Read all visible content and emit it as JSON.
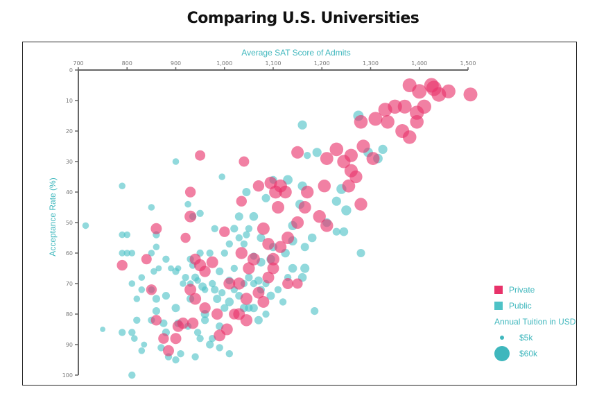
{
  "page": {
    "title": "Comparing U.S. Universities"
  },
  "colors": {
    "private": "#e8326a",
    "public": "#4ec2c6",
    "axis": "#666666",
    "accent_text": "#3fb7bd"
  },
  "legend": {
    "private_label": "Private",
    "public_label": "Public",
    "size_title": "Annual Tuition in USD",
    "size_small_label": "$5k",
    "size_large_label": "$60k"
  },
  "chart_data": {
    "type": "scatter",
    "title": "Comparing U.S. Universities",
    "xlabel": "Average SAT Score of Admits",
    "ylabel": "Acceptance Rate (%)",
    "xlim": [
      700,
      1500
    ],
    "ylim": [
      0,
      100
    ],
    "y_reversed": true,
    "x_axis_position": "top",
    "x_ticks": [
      700,
      800,
      900,
      1000,
      1100,
      1200,
      1300,
      1400,
      1500
    ],
    "x_tick_labels": [
      "700",
      "800",
      "900",
      "1,000",
      "1,100",
      "1,200",
      "1,300",
      "1,400",
      "1,500"
    ],
    "y_ticks": [
      0,
      10,
      20,
      30,
      40,
      50,
      60,
      70,
      80,
      90,
      100
    ],
    "y_tick_labels": [
      "0",
      "10",
      "20",
      "30",
      "40",
      "50",
      "60",
      "70",
      "80",
      "90",
      "100"
    ],
    "size_encoding": "annual tuition (USD)",
    "size_range": [
      5000,
      60000
    ],
    "grid": false,
    "legend_position": "bottom-right",
    "series": [
      {
        "name": "Private",
        "points": [
          [
            1430,
            6,
            60000
          ],
          [
            1425,
            5,
            55000
          ],
          [
            1410,
            12,
            52000
          ],
          [
            1380,
            5,
            50000
          ],
          [
            1400,
            7,
            55000
          ],
          [
            1440,
            8,
            55000
          ],
          [
            1460,
            7,
            50000
          ],
          [
            1505,
            8,
            50000
          ],
          [
            1395,
            14,
            52000
          ],
          [
            1370,
            12,
            50000
          ],
          [
            1350,
            12,
            52000
          ],
          [
            1335,
            17,
            48000
          ],
          [
            1330,
            13,
            50000
          ],
          [
            1310,
            16,
            50000
          ],
          [
            1280,
            17,
            48000
          ],
          [
            1365,
            20,
            50000
          ],
          [
            1380,
            22,
            48000
          ],
          [
            1395,
            17,
            48000
          ],
          [
            1285,
            25,
            46000
          ],
          [
            1305,
            29,
            44000
          ],
          [
            1260,
            28,
            46000
          ],
          [
            1230,
            26,
            48000
          ],
          [
            1245,
            30,
            46000
          ],
          [
            1260,
            33,
            46000
          ],
          [
            1270,
            35,
            42000
          ],
          [
            1255,
            38,
            44000
          ],
          [
            1280,
            44,
            42000
          ],
          [
            1210,
            29,
            44000
          ],
          [
            1170,
            40,
            42000
          ],
          [
            1205,
            38,
            42000
          ],
          [
            1150,
            27,
            40000
          ],
          [
            1115,
            38,
            44000
          ],
          [
            1125,
            40,
            42000
          ],
          [
            1095,
            37,
            40000
          ],
          [
            1105,
            40,
            44000
          ],
          [
            1165,
            45,
            40000
          ],
          [
            1195,
            48,
            42000
          ],
          [
            1210,
            51,
            42000
          ],
          [
            1150,
            50,
            40000
          ],
          [
            1110,
            45,
            40000
          ],
          [
            1080,
            52,
            40000
          ],
          [
            1130,
            55,
            40000
          ],
          [
            1115,
            58,
            38000
          ],
          [
            1090,
            57,
            38000
          ],
          [
            1100,
            62,
            40000
          ],
          [
            1060,
            62,
            40000
          ],
          [
            1035,
            60,
            38000
          ],
          [
            1050,
            65,
            38000
          ],
          [
            1090,
            68,
            36000
          ],
          [
            1100,
            65,
            36000
          ],
          [
            1030,
            70,
            38000
          ],
          [
            1045,
            75,
            38000
          ],
          [
            1070,
            73,
            36000
          ],
          [
            1080,
            76,
            36000
          ],
          [
            1010,
            70,
            36000
          ],
          [
            1030,
            80,
            36000
          ],
          [
            1045,
            82,
            38000
          ],
          [
            1005,
            85,
            36000
          ],
          [
            990,
            87,
            36000
          ],
          [
            985,
            80,
            34000
          ],
          [
            960,
            78,
            34000
          ],
          [
            950,
            64,
            38000
          ],
          [
            975,
            63,
            36000
          ],
          [
            960,
            66,
            34000
          ],
          [
            930,
            72,
            36000
          ],
          [
            940,
            75,
            36000
          ],
          [
            935,
            83,
            34000
          ],
          [
            905,
            84,
            34000
          ],
          [
            915,
            83,
            34000
          ],
          [
            900,
            88,
            32000
          ],
          [
            875,
            88,
            30000
          ],
          [
            885,
            92,
            32000
          ],
          [
            860,
            82,
            30000
          ],
          [
            850,
            72,
            30000
          ],
          [
            840,
            62,
            28000
          ],
          [
            790,
            64,
            30000
          ],
          [
            860,
            52,
            32000
          ],
          [
            930,
            48,
            36000
          ],
          [
            930,
            40,
            30000
          ],
          [
            950,
            28,
            28000
          ],
          [
            1040,
            30,
            28000
          ],
          [
            1035,
            43,
            30000
          ],
          [
            1070,
            38,
            34000
          ],
          [
            920,
            55,
            26000
          ],
          [
            1130,
            70,
            32000
          ],
          [
            1150,
            70,
            28000
          ],
          [
            1000,
            53,
            30000
          ],
          [
            1020,
            80,
            30000
          ],
          [
            940,
            62,
            32000
          ]
        ]
      },
      {
        "name": "Public",
        "points": [
          [
            1275,
            15,
            28000
          ],
          [
            1295,
            27,
            24000
          ],
          [
            1325,
            26,
            22000
          ],
          [
            1315,
            29,
            24000
          ],
          [
            1160,
            18,
            22000
          ],
          [
            1190,
            27,
            22000
          ],
          [
            1130,
            36,
            24000
          ],
          [
            1160,
            38,
            22000
          ],
          [
            1240,
            39,
            26000
          ],
          [
            1230,
            43,
            22000
          ],
          [
            1250,
            46,
            26000
          ],
          [
            1245,
            53,
            20000
          ],
          [
            1210,
            50,
            20000
          ],
          [
            1155,
            44,
            22000
          ],
          [
            1140,
            51,
            22000
          ],
          [
            1180,
            55,
            20000
          ],
          [
            1165,
            58,
            18000
          ],
          [
            1140,
            56,
            22000
          ],
          [
            1165,
            65,
            22000
          ],
          [
            1140,
            65,
            20000
          ],
          [
            1125,
            60,
            20000
          ],
          [
            1160,
            68,
            20000
          ],
          [
            1095,
            62,
            20000
          ],
          [
            1100,
            58,
            18000
          ],
          [
            1075,
            55,
            18000
          ],
          [
            1060,
            48,
            20000
          ],
          [
            1075,
            63,
            20000
          ],
          [
            1095,
            74,
            18000
          ],
          [
            1070,
            69,
            18000
          ],
          [
            1060,
            78,
            18000
          ],
          [
            1070,
            82,
            18000
          ],
          [
            1040,
            78,
            18000
          ],
          [
            1010,
            76,
            20000
          ],
          [
            985,
            75,
            18000
          ],
          [
            960,
            80,
            18000
          ],
          [
            955,
            71,
            18000
          ],
          [
            940,
            68,
            16000
          ],
          [
            930,
            75,
            16000
          ],
          [
            900,
            78,
            18000
          ],
          [
            880,
            74,
            16000
          ],
          [
            860,
            75,
            16000
          ],
          [
            860,
            79,
            16000
          ],
          [
            875,
            83,
            16000
          ],
          [
            880,
            86,
            16000
          ],
          [
            850,
            82,
            14000
          ],
          [
            820,
            82,
            14000
          ],
          [
            810,
            86,
            14000
          ],
          [
            790,
            86,
            14000
          ],
          [
            815,
            88,
            12000
          ],
          [
            830,
            92,
            12000
          ],
          [
            870,
            91,
            14000
          ],
          [
            900,
            95,
            14000
          ],
          [
            910,
            93,
            14000
          ],
          [
            940,
            94,
            14000
          ],
          [
            950,
            88,
            14000
          ],
          [
            970,
            90,
            16000
          ],
          [
            990,
            91,
            14000
          ],
          [
            1010,
            93,
            14000
          ],
          [
            960,
            82,
            16000
          ],
          [
            990,
            84,
            16000
          ],
          [
            1000,
            78,
            16000
          ],
          [
            980,
            72,
            16000
          ],
          [
            1010,
            69,
            16000
          ],
          [
            990,
            66,
            16000
          ],
          [
            1000,
            60,
            14000
          ],
          [
            1010,
            57,
            14000
          ],
          [
            1030,
            55,
            14000
          ],
          [
            1040,
            57,
            14000
          ],
          [
            1050,
            52,
            14000
          ],
          [
            1060,
            61,
            14000
          ],
          [
            1050,
            68,
            16000
          ],
          [
            1020,
            65,
            14000
          ],
          [
            1030,
            74,
            16000
          ],
          [
            1050,
            78,
            16000
          ],
          [
            1075,
            72,
            16000
          ],
          [
            1085,
            80,
            14000
          ],
          [
            1110,
            72,
            14000
          ],
          [
            1120,
            76,
            14000
          ],
          [
            970,
            60,
            14000
          ],
          [
            950,
            60,
            14000
          ],
          [
            930,
            62,
            14000
          ],
          [
            920,
            68,
            14000
          ],
          [
            900,
            66,
            14000
          ],
          [
            880,
            62,
            14000
          ],
          [
            860,
            58,
            12000
          ],
          [
            850,
            60,
            12000
          ],
          [
            855,
            66,
            12000
          ],
          [
            830,
            68,
            12000
          ],
          [
            830,
            72,
            12000
          ],
          [
            850,
            72,
            12000
          ],
          [
            820,
            75,
            12000
          ],
          [
            810,
            70,
            12000
          ],
          [
            790,
            60,
            12000
          ],
          [
            800,
            60,
            12000
          ],
          [
            810,
            60,
            12000
          ],
          [
            790,
            54,
            12000
          ],
          [
            800,
            54,
            12000
          ],
          [
            790,
            38,
            12000
          ],
          [
            715,
            51,
            12000
          ],
          [
            750,
            85,
            8000
          ],
          [
            810,
            100,
            14000
          ],
          [
            835,
            90,
            10000
          ],
          [
            865,
            65,
            10000
          ],
          [
            890,
            65,
            10000
          ],
          [
            905,
            65,
            10000
          ],
          [
            915,
            70,
            12000
          ],
          [
            930,
            70,
            12000
          ],
          [
            945,
            69,
            12000
          ],
          [
            960,
            72,
            12000
          ],
          [
            975,
            70,
            14000
          ],
          [
            995,
            73,
            14000
          ],
          [
            1020,
            72,
            14000
          ],
          [
            1040,
            70,
            14000
          ],
          [
            1060,
            70,
            14000
          ],
          [
            1085,
            70,
            14000
          ],
          [
            1130,
            68,
            14000
          ],
          [
            1185,
            79,
            16000
          ],
          [
            1280,
            60,
            18000
          ],
          [
            1230,
            53,
            16000
          ],
          [
            1170,
            28,
            14000
          ],
          [
            1100,
            36,
            16000
          ],
          [
            1085,
            42,
            18000
          ],
          [
            1045,
            40,
            18000
          ],
          [
            1030,
            48,
            18000
          ],
          [
            1020,
            52,
            16000
          ],
          [
            1045,
            54,
            14000
          ],
          [
            980,
            52,
            14000
          ],
          [
            950,
            47,
            14000
          ],
          [
            935,
            48,
            14000
          ],
          [
            925,
            44,
            12000
          ],
          [
            860,
            54,
            14000
          ],
          [
            850,
            45,
            12000
          ],
          [
            900,
            30,
            12000
          ],
          [
            995,
            35,
            12000
          ],
          [
            935,
            64,
            14000
          ],
          [
            905,
            83,
            16000
          ],
          [
            925,
            84,
            14000
          ],
          [
            945,
            86,
            14000
          ],
          [
            885,
            94,
            14000
          ],
          [
            975,
            88,
            14000
          ]
        ]
      }
    ]
  }
}
